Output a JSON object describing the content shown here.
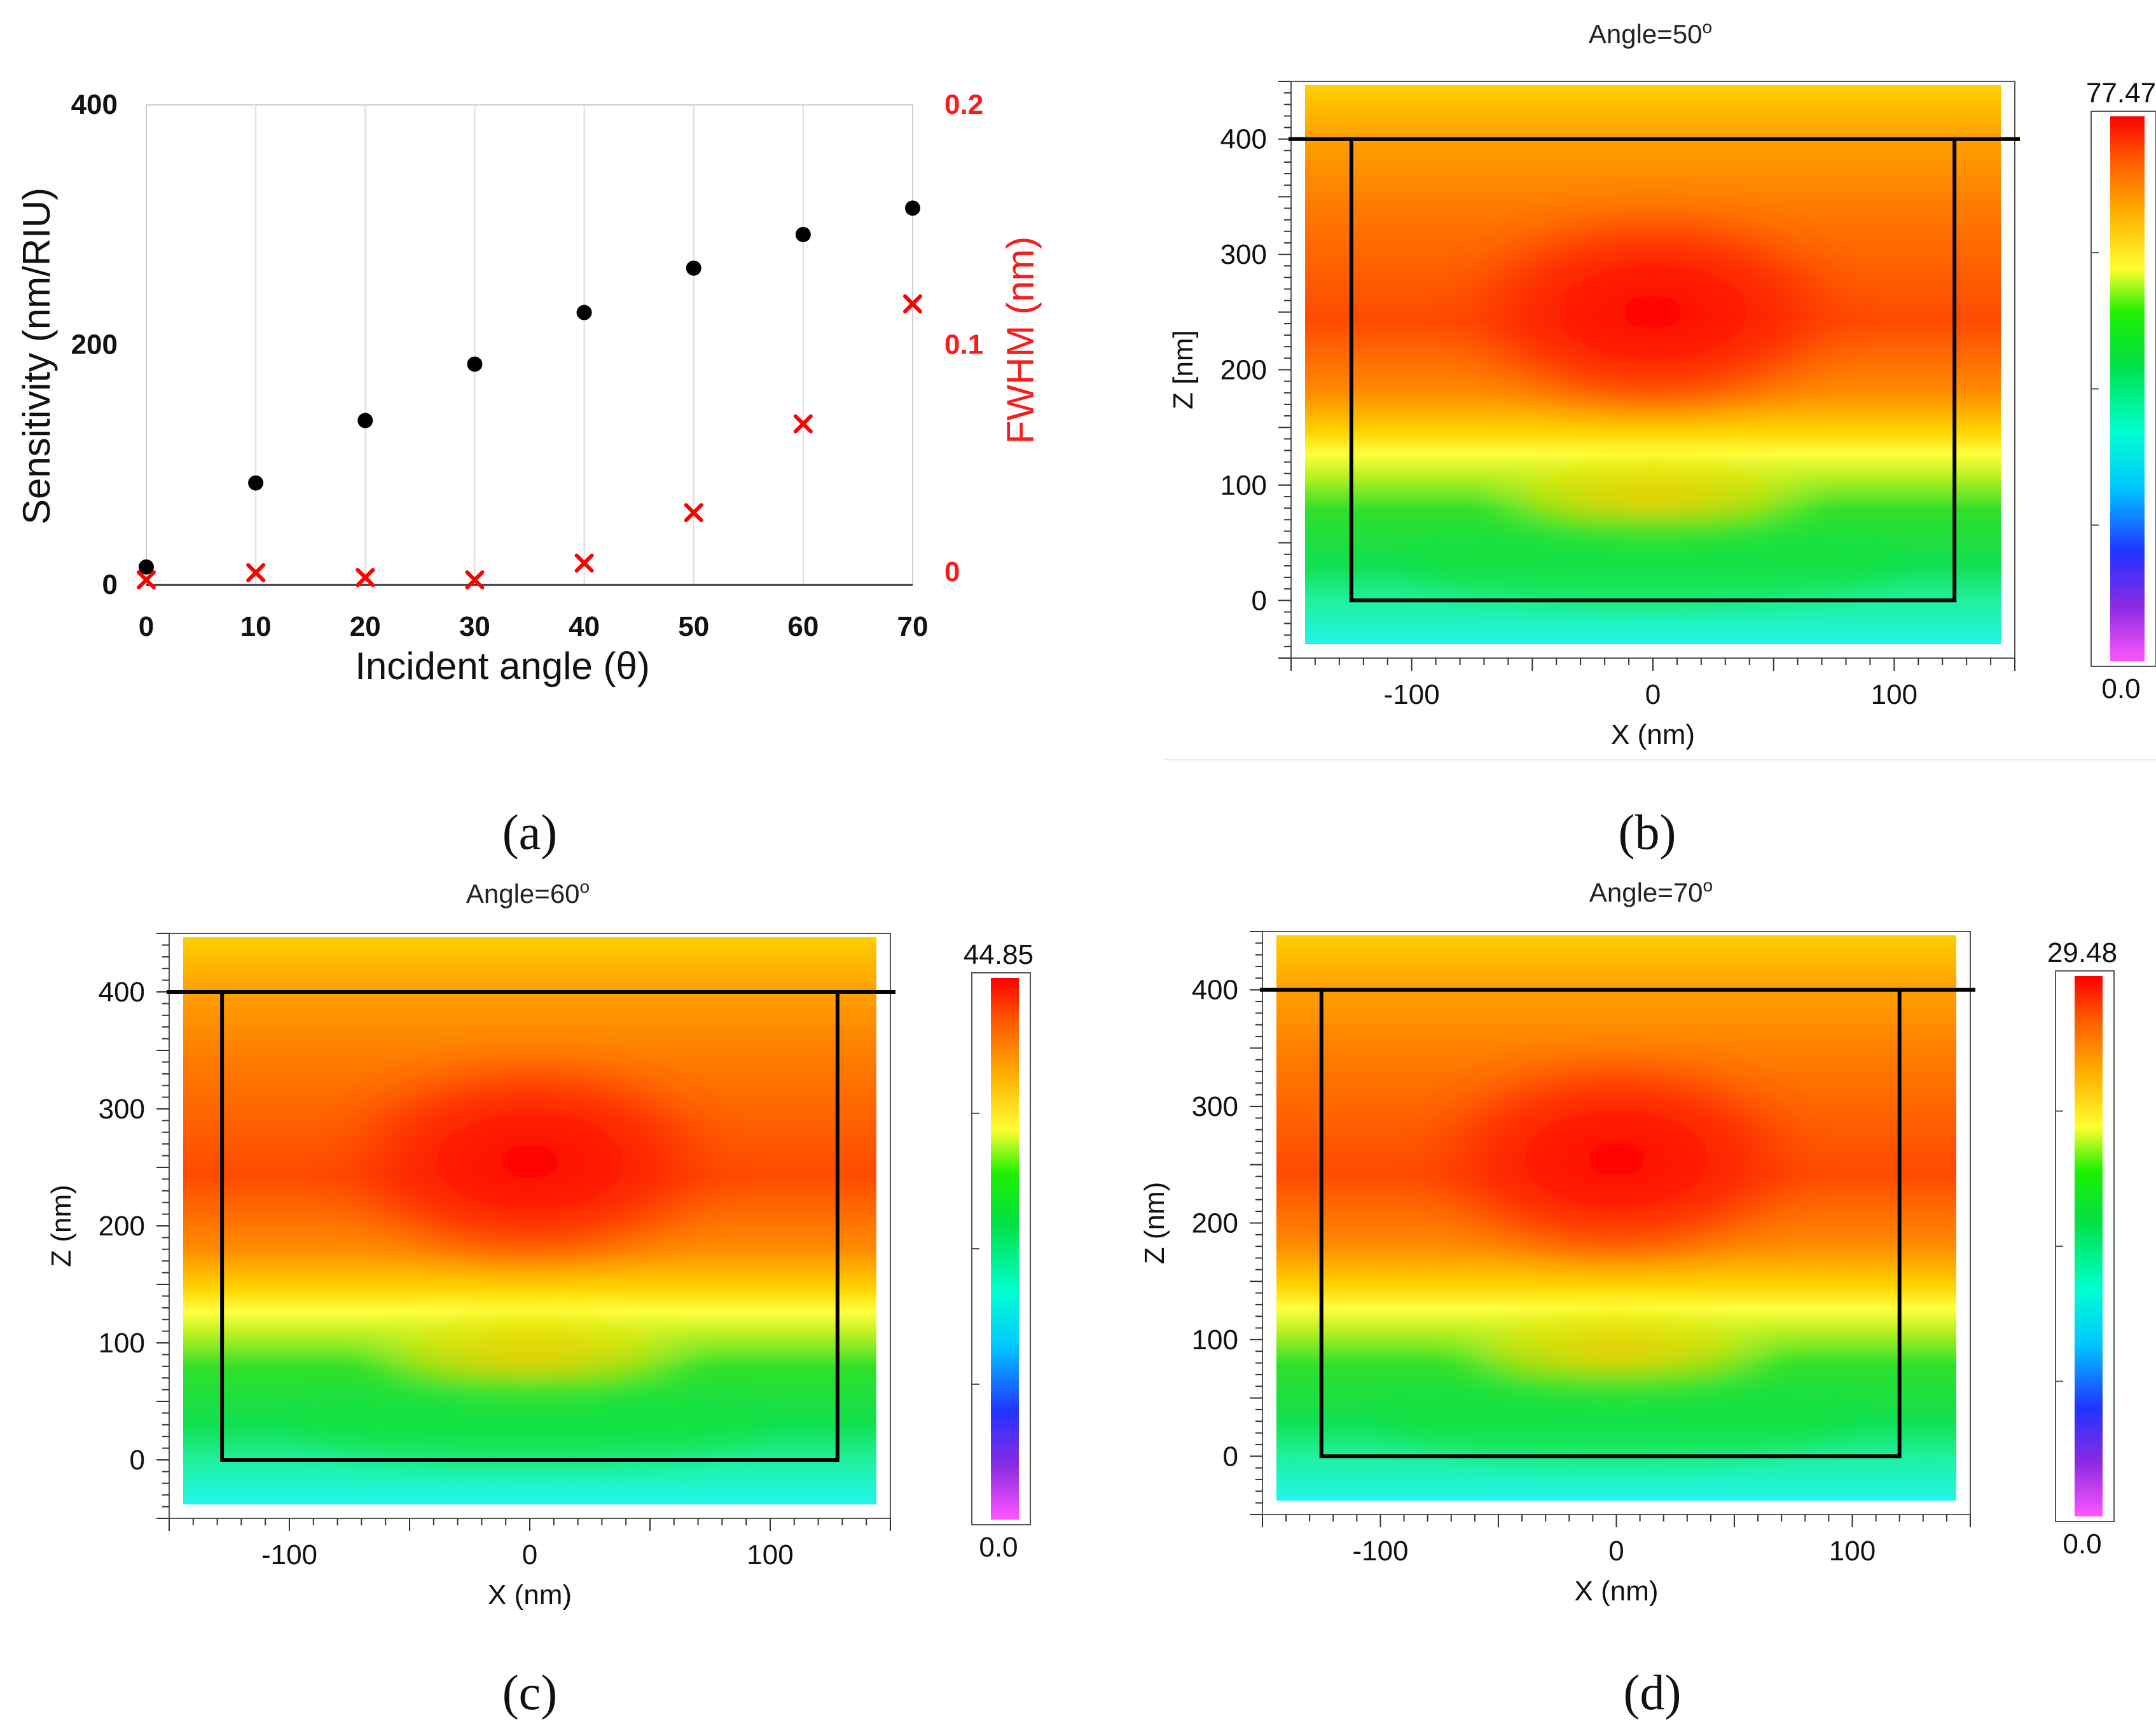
{
  "colors": {
    "sensitivity": "#000000",
    "fwhm": "#ff0000",
    "colormap": [
      "#ff55ff",
      "#8a2be2",
      "#2233ff",
      "#00c8ff",
      "#00ffd0",
      "#00e040",
      "#20f000",
      "#ffff30",
      "#ffb000",
      "#ff5a00",
      "#ff0000"
    ]
  },
  "chart_data": [
    {
      "type": "scatter",
      "panel_label": "(a)",
      "xlabel": "Incident angle (θ)",
      "ylabel": "Sensitivity (nm/RIU)",
      "y2label": "FWHM (nm)",
      "xlim": [
        0,
        70
      ],
      "ylim": [
        0,
        400
      ],
      "y2lim": [
        0,
        0.2
      ],
      "x_ticks": [
        "0",
        "10",
        "20",
        "30",
        "40",
        "50",
        "60",
        "70"
      ],
      "y_ticks": [
        "0",
        "200",
        "400"
      ],
      "y2_ticks": [
        "0",
        "0.1",
        "0.2"
      ],
      "grid": "vertical",
      "series": [
        {
          "name": "Sensitivity",
          "axis": "left",
          "marker": "dot",
          "x": [
            0,
            10,
            20,
            30,
            40,
            50,
            60,
            70
          ],
          "values": [
            15,
            85,
            137,
            184,
            227,
            264,
            292,
            314
          ]
        },
        {
          "name": "FWHM",
          "axis": "right",
          "marker": "x",
          "x": [
            0,
            10,
            20,
            30,
            40,
            50,
            60,
            70
          ],
          "values": [
            0.0,
            0.003,
            0.001,
            0.0,
            0.007,
            0.028,
            0.065,
            0.115
          ]
        }
      ]
    },
    {
      "type": "heatmap",
      "panel_label": "(b)",
      "title": "Angle=50°",
      "title_text": "Angle=50",
      "title_sup": "o",
      "xlabel": "X (nm)",
      "ylabel": "Z [nm]",
      "xlim": [
        -150,
        150
      ],
      "ylim": [
        -50,
        450
      ],
      "x_ticks": [
        "-100",
        "0",
        "100"
      ],
      "y_ticks": [
        "0",
        "100",
        "200",
        "300",
        "400"
      ],
      "colorbar_max": "77.47",
      "colorbar_min": "0.0",
      "hotspot": [
        0,
        250
      ],
      "outline": {
        "x_left": -125,
        "x_right": 125,
        "z_bottom": 0,
        "z_top": 400
      }
    },
    {
      "type": "heatmap",
      "panel_label": "(c)",
      "title": "Angle=60°",
      "title_text": "Angle=60",
      "title_sup": "o",
      "xlabel": "X (nm)",
      "ylabel": "Z (nm)",
      "xlim": [
        -150,
        150
      ],
      "ylim": [
        -50,
        450
      ],
      "x_ticks": [
        "-100",
        "0",
        "100"
      ],
      "y_ticks": [
        "0",
        "100",
        "200",
        "300",
        "400"
      ],
      "colorbar_max": "44.85",
      "colorbar_min": "0.0",
      "hotspot": [
        0,
        255
      ],
      "outline": {
        "x_left": -128,
        "x_right": 128,
        "z_bottom": 0,
        "z_top": 400
      }
    },
    {
      "type": "heatmap",
      "panel_label": "(d)",
      "title": "Angle=70°",
      "title_text": "Angle=70",
      "title_sup": "o",
      "xlabel": "X (nm)",
      "ylabel": "Z (nm)",
      "xlim": [
        -150,
        150
      ],
      "ylim": [
        -50,
        450
      ],
      "x_ticks": [
        "-100",
        "0",
        "100"
      ],
      "y_ticks": [
        "0",
        "100",
        "200",
        "300",
        "400"
      ],
      "colorbar_max": "29.48",
      "colorbar_min": "0.0",
      "hotspot": [
        0,
        255
      ],
      "outline": {
        "x_left": -125,
        "x_right": 120,
        "z_bottom": 0,
        "z_top": 400
      }
    }
  ]
}
